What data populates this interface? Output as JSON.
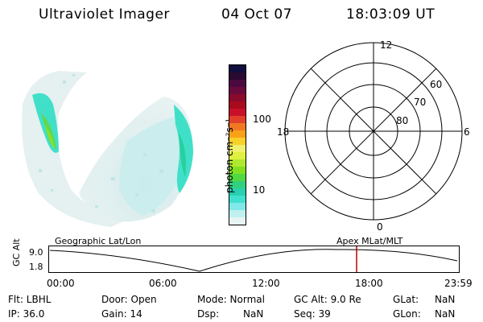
{
  "header": {
    "instrument": "Ultraviolet Imager",
    "date": "04 Oct 07",
    "time": "18:03:09 UT"
  },
  "colorbar": {
    "unit_label": "photon cm⁻²s⁻¹",
    "ticks": [
      "100",
      "10"
    ],
    "colors": [
      "#101040",
      "#2a0a30",
      "#4a0a40",
      "#6a0a3c",
      "#8a0a2c",
      "#a80a1e",
      "#c8102a",
      "#e0402a",
      "#f07820",
      "#f8a018",
      "#f8d028",
      "#f0f070",
      "#e0f040",
      "#b0e830",
      "#80e020",
      "#50d840",
      "#30d080",
      "#28d0b0",
      "#40e0d0",
      "#80e8e8",
      "#c0f0f0",
      "#e8f4f4"
    ],
    "accent": "#28d8c8"
  },
  "polar_grid": {
    "mlt_labels": {
      "top": "12",
      "bottom": "0",
      "left": "18",
      "right": "6"
    },
    "lat_labels": [
      "60",
      "70",
      "80"
    ]
  },
  "timeline": {
    "y_axis_label": "GC Alt",
    "y_max": "9.0",
    "y_min": "1.8",
    "left_title": "Geographic Lat/Lon",
    "right_title": "Apex  MLat/MLT",
    "ticks": [
      "00:00",
      "06:00",
      "12:00",
      "18:00",
      "23:59"
    ],
    "marker_color": "#c00000"
  },
  "status": {
    "filter": "Flt: LBHL",
    "door": "Door: Open",
    "mode": "Mode: Normal",
    "gc_alt": "GC Alt: 9.0 Re",
    "glat_label": "GLat:",
    "glat_value": "NaN",
    "ip": "IP: 36.0",
    "gain": "Gain: 14",
    "dsp_label": "Dsp:",
    "dsp_value": "NaN",
    "seq": "Seq: 39",
    "glon_label": "GLon:",
    "glon_value": "NaN"
  }
}
